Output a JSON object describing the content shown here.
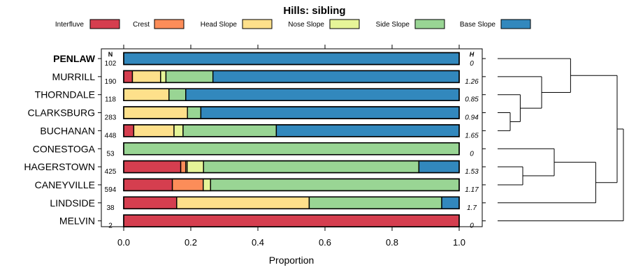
{
  "chart_data": {
    "type": "bar",
    "orientation": "horizontal",
    "stacked": true,
    "title": "Hills: sibling",
    "xlabel": "Proportion",
    "ylabel": "",
    "xlim": [
      0,
      1
    ],
    "x_ticks": [
      "0.0",
      "0.2",
      "0.4",
      "0.6",
      "0.8",
      "1.0"
    ],
    "n_header": "N",
    "h_header": "H",
    "legend_position": "top",
    "legend": [
      {
        "name": "Interfluve",
        "color": "#D53E4F"
      },
      {
        "name": "Crest",
        "color": "#FC8D59"
      },
      {
        "name": "Head Slope",
        "color": "#FEE08B"
      },
      {
        "name": "Nose Slope",
        "color": "#E6F598"
      },
      {
        "name": "Side Slope",
        "color": "#99D594"
      },
      {
        "name": "Base Slope",
        "color": "#3288BD"
      }
    ],
    "categories": [
      {
        "label": "PENLAW",
        "n": "102",
        "h": "0",
        "bold": true,
        "values": [
          0,
          0,
          0,
          0,
          0,
          1.0
        ]
      },
      {
        "label": "MURRILL",
        "n": "190",
        "h": "1.26",
        "bold": false,
        "values": [
          0.026,
          0,
          0.084,
          0.016,
          0.14,
          0.734
        ]
      },
      {
        "label": "THORNDALE",
        "n": "118",
        "h": "0.85",
        "bold": false,
        "values": [
          0,
          0,
          0.135,
          0,
          0.05,
          0.815
        ]
      },
      {
        "label": "CLARKSBURG",
        "n": "283",
        "h": "0.94",
        "bold": false,
        "values": [
          0,
          0,
          0.19,
          0,
          0.04,
          0.77
        ]
      },
      {
        "label": "BUCHANAN",
        "n": "448",
        "h": "1.65",
        "bold": false,
        "values": [
          0.03,
          0,
          0.12,
          0.027,
          0.278,
          0.545
        ]
      },
      {
        "label": "CONESTOGA",
        "n": "53",
        "h": "0",
        "bold": false,
        "values": [
          0,
          0,
          0,
          0,
          1.0,
          0
        ]
      },
      {
        "label": "HAGERSTOWN",
        "n": "425",
        "h": "1.53",
        "bold": false,
        "values": [
          0.17,
          0.015,
          0.004,
          0.049,
          0.642,
          0.12
        ]
      },
      {
        "label": "CANEYVILLE",
        "n": "594",
        "h": "1.17",
        "bold": false,
        "values": [
          0.145,
          0.092,
          0,
          0.022,
          0.741,
          0
        ]
      },
      {
        "label": "LINDSIDE",
        "n": "38",
        "h": "1.7",
        "bold": false,
        "values": [
          0.158,
          0,
          0.395,
          0,
          0.395,
          0.052
        ]
      },
      {
        "label": "MELVIN",
        "n": "2",
        "h": "0",
        "bold": false,
        "values": [
          1.0,
          0,
          0,
          0,
          0,
          0
        ]
      }
    ],
    "dendrogram": {
      "description": "hierarchical clustering of soil series by hillslope position",
      "merges": [
        {
          "left": "CLARKSBURG",
          "right": "BUCHANAN",
          "height": 0.1
        },
        {
          "left": "THORNDALE",
          "right": "m0",
          "height": 0.18
        },
        {
          "left": "MURRILL",
          "right": "m1",
          "height": 0.35
        },
        {
          "left": "PENLAW",
          "right": "m2",
          "height": 0.58
        },
        {
          "left": "HAGERSTOWN",
          "right": "CANEYVILLE",
          "height": 0.2
        },
        {
          "left": "CONESTOGA",
          "right": "m4",
          "height": 0.45
        },
        {
          "left": "LINDSIDE",
          "right": "m5",
          "height": 0.78
        },
        {
          "left": "m3",
          "right": "m6",
          "height": 0.95
        },
        {
          "left": "MELVIN",
          "right": "m7",
          "height": 1.0
        }
      ]
    }
  }
}
